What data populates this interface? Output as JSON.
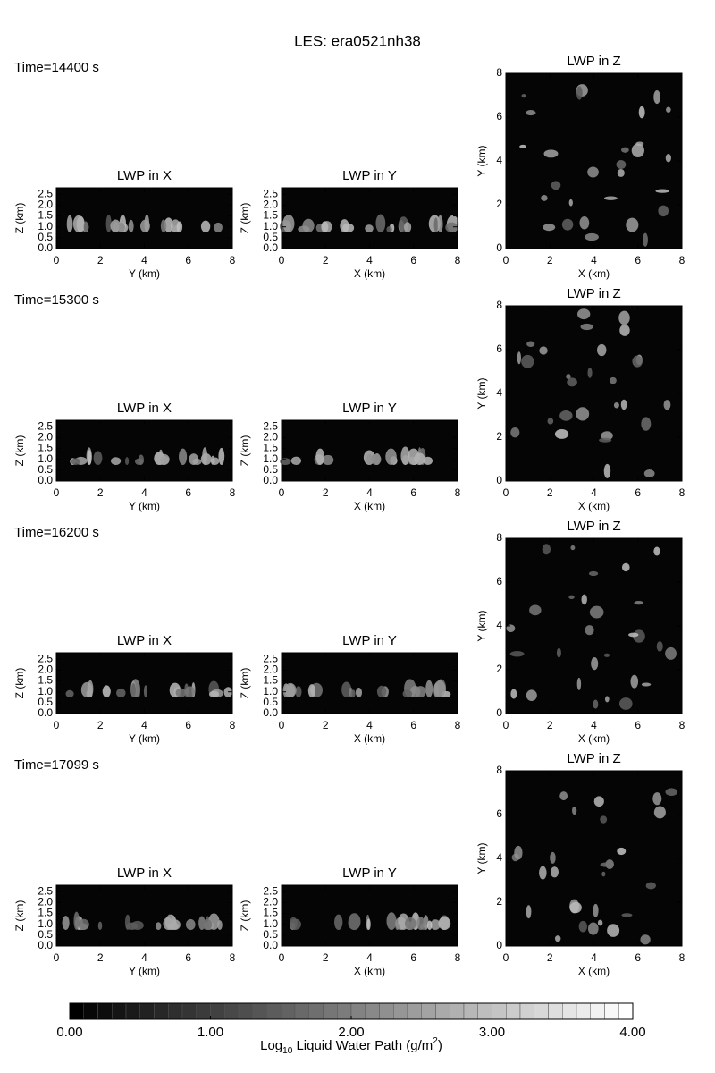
{
  "title": "LES: era0521nh38",
  "rows": [
    {
      "time": "Time=14400 s",
      "panels": [
        {
          "title": "LWP in X",
          "xlabel": "Y (km)",
          "ylabel": "Z (km)",
          "xlim": [
            0,
            8
          ],
          "xticks": [
            0,
            2,
            4,
            6,
            8
          ],
          "ylim": [
            0,
            2.8
          ],
          "yticks": [
            {
              "value": 0,
              "label": "0.0"
            },
            0.5,
            {
              "value": 1,
              "label": "1.0"
            },
            1.5,
            {
              "value": 2,
              "label": "2.0"
            },
            2.5
          ]
        },
        {
          "title": "LWP in Y",
          "xlabel": "X (km)",
          "ylabel": "Z (km)",
          "xlim": [
            0,
            8
          ],
          "xticks": [
            0,
            2,
            4,
            6,
            8
          ],
          "ylim": [
            0,
            2.8
          ],
          "yticks": [
            {
              "value": 0,
              "label": "0.0"
            },
            0.5,
            {
              "value": 1,
              "label": "1.0"
            },
            1.5,
            {
              "value": 2,
              "label": "2.0"
            },
            2.5
          ]
        },
        {
          "title": "LWP in Z",
          "xlabel": "X (km)",
          "ylabel": "Y (km)",
          "xlim": [
            0,
            8
          ],
          "xticks": [
            0,
            2,
            4,
            6,
            8
          ],
          "ylim": [
            0,
            8
          ],
          "yticks": [
            0,
            2,
            4,
            6,
            8
          ]
        }
      ]
    },
    {
      "time": "Time=15300 s",
      "panels": [
        {
          "title": "LWP in X",
          "xlabel": "Y (km)",
          "ylabel": "Z (km)",
          "xlim": [
            0,
            8
          ],
          "xticks": [
            0,
            2,
            4,
            6,
            8
          ],
          "ylim": [
            0,
            2.8
          ],
          "yticks": [
            {
              "value": 0,
              "label": "0.0"
            },
            0.5,
            {
              "value": 1,
              "label": "1.0"
            },
            1.5,
            {
              "value": 2,
              "label": "2.0"
            },
            2.5
          ]
        },
        {
          "title": "LWP in Y",
          "xlabel": "X (km)",
          "ylabel": "Z (km)",
          "xlim": [
            0,
            8
          ],
          "xticks": [
            0,
            2,
            4,
            6,
            8
          ],
          "ylim": [
            0,
            2.8
          ],
          "yticks": [
            {
              "value": 0,
              "label": "0.0"
            },
            0.5,
            {
              "value": 1,
              "label": "1.0"
            },
            1.5,
            {
              "value": 2,
              "label": "2.0"
            },
            2.5
          ]
        },
        {
          "title": "LWP in Z",
          "xlabel": "X (km)",
          "ylabel": "Y (km)",
          "xlim": [
            0,
            8
          ],
          "xticks": [
            0,
            2,
            4,
            6,
            8
          ],
          "ylim": [
            0,
            8
          ],
          "yticks": [
            0,
            2,
            4,
            6,
            8
          ]
        }
      ]
    },
    {
      "time": "Time=16200 s",
      "panels": [
        {
          "title": "LWP in X",
          "xlabel": "Y (km)",
          "ylabel": "Z (km)",
          "xlim": [
            0,
            8
          ],
          "xticks": [
            0,
            2,
            4,
            6,
            8
          ],
          "ylim": [
            0,
            2.8
          ],
          "yticks": [
            {
              "value": 0,
              "label": "0.0"
            },
            0.5,
            {
              "value": 1,
              "label": "1.0"
            },
            1.5,
            {
              "value": 2,
              "label": "2.0"
            },
            2.5
          ]
        },
        {
          "title": "LWP in Y",
          "xlabel": "X (km)",
          "ylabel": "Z (km)",
          "xlim": [
            0,
            8
          ],
          "xticks": [
            0,
            2,
            4,
            6,
            8
          ],
          "ylim": [
            0,
            2.8
          ],
          "yticks": [
            {
              "value": 0,
              "label": "0.0"
            },
            0.5,
            {
              "value": 1,
              "label": "1.0"
            },
            1.5,
            {
              "value": 2,
              "label": "2.0"
            },
            2.5
          ]
        },
        {
          "title": "LWP in Z",
          "xlabel": "X (km)",
          "ylabel": "Y (km)",
          "xlim": [
            0,
            8
          ],
          "xticks": [
            0,
            2,
            4,
            6,
            8
          ],
          "ylim": [
            0,
            8
          ],
          "yticks": [
            0,
            2,
            4,
            6,
            8
          ]
        }
      ]
    },
    {
      "time": "Time=17099 s",
      "panels": [
        {
          "title": "LWP in X",
          "xlabel": "Y (km)",
          "ylabel": "Z (km)",
          "xlim": [
            0,
            8
          ],
          "xticks": [
            0,
            2,
            4,
            6,
            8
          ],
          "ylim": [
            0,
            2.8
          ],
          "yticks": [
            {
              "value": 0,
              "label": "0.0"
            },
            0.5,
            {
              "value": 1,
              "label": "1.0"
            },
            1.5,
            {
              "value": 2,
              "label": "2.0"
            },
            2.5
          ]
        },
        {
          "title": "LWP in Y",
          "xlabel": "X (km)",
          "ylabel": "Z (km)",
          "xlim": [
            0,
            8
          ],
          "xticks": [
            0,
            2,
            4,
            6,
            8
          ],
          "ylim": [
            0,
            2.8
          ],
          "yticks": [
            {
              "value": 0,
              "label": "0.0"
            },
            0.5,
            {
              "value": 1,
              "label": "1.0"
            },
            1.5,
            {
              "value": 2,
              "label": "2.0"
            },
            2.5
          ]
        },
        {
          "title": "LWP in Z",
          "xlabel": "X (km)",
          "ylabel": "Y (km)",
          "xlim": [
            0,
            8
          ],
          "xticks": [
            0,
            2,
            4,
            6,
            8
          ],
          "ylim": [
            0,
            8
          ],
          "yticks": [
            0,
            2,
            4,
            6,
            8
          ]
        }
      ]
    }
  ],
  "colorbar": {
    "lim": [
      0,
      4
    ],
    "ticks": [
      {
        "value": 0,
        "label": "0.00"
      },
      {
        "value": 1,
        "label": "1.00"
      },
      {
        "value": 2,
        "label": "2.00"
      },
      {
        "value": 3,
        "label": "3.00"
      },
      {
        "value": 4,
        "label": "4.00"
      }
    ],
    "label": [
      "Log",
      "10",
      " Liquid Water Path (g/m",
      "2",
      ")"
    ]
  }
}
